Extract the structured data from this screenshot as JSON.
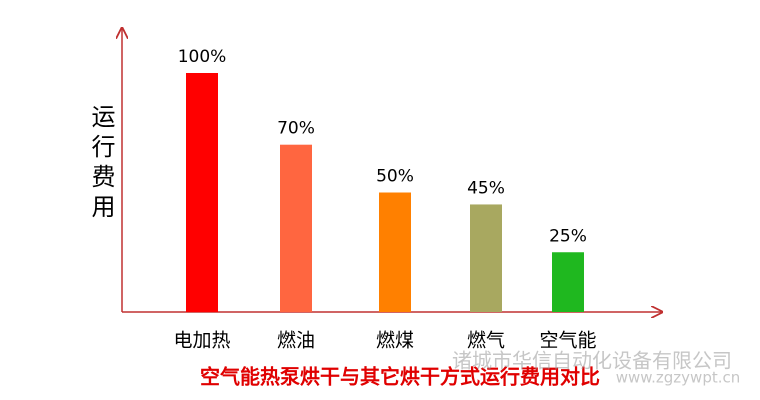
{
  "chart_data": {
    "type": "bar",
    "title": "空气能热泵烘干与其它烘干方式运行费用对比",
    "y_label": "运行费用",
    "categories": [
      "电加热",
      "燃油",
      "燃煤",
      "燃气",
      "空气能"
    ],
    "values": [
      100,
      70,
      50,
      45,
      25
    ],
    "value_labels": [
      "100%",
      "70%",
      "50%",
      "45%",
      "25%"
    ],
    "colors": [
      "#ff0000",
      "#ff6640",
      "#ff8000",
      "#a8a860",
      "#1fb81f"
    ],
    "ylim": [
      0,
      100
    ],
    "watermarks": [
      "诸城市华信自动化设备有限公司",
      "www.zgzywpt.cn"
    ]
  }
}
